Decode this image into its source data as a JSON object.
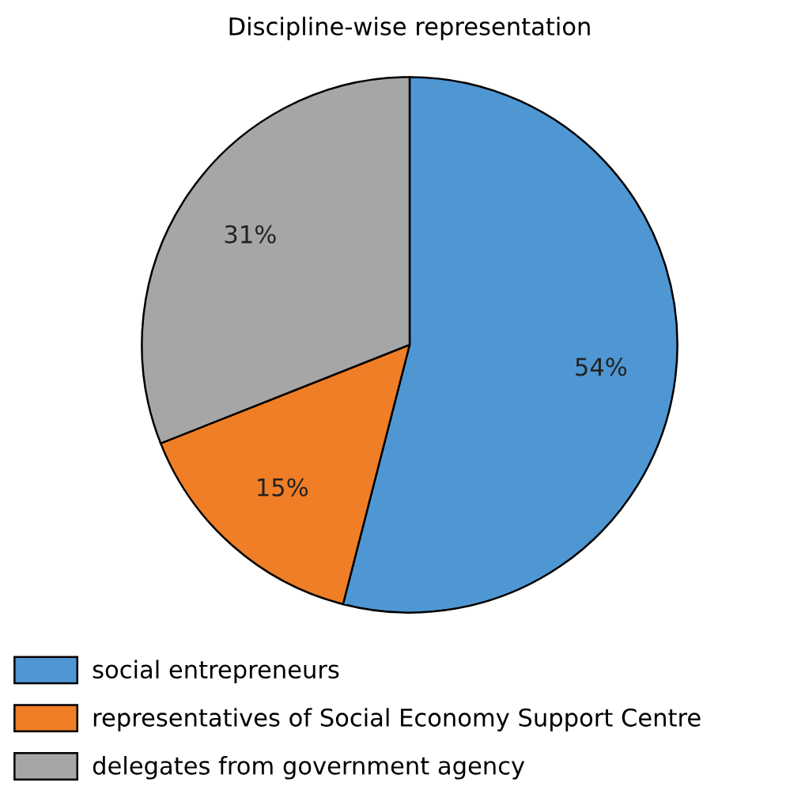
{
  "chart_data": {
    "type": "pie",
    "title": "Discipline-wise representation",
    "categories": [
      "social entrepreneurs",
      "representatives of Social Economy Support Centre",
      "delegates from government agency"
    ],
    "values": [
      54,
      15,
      31
    ],
    "colors": [
      "#4f97d3",
      "#f07e26",
      "#a6a6a6"
    ],
    "value_labels": [
      "54%",
      "15%",
      "31%"
    ],
    "legend": "bottom"
  }
}
